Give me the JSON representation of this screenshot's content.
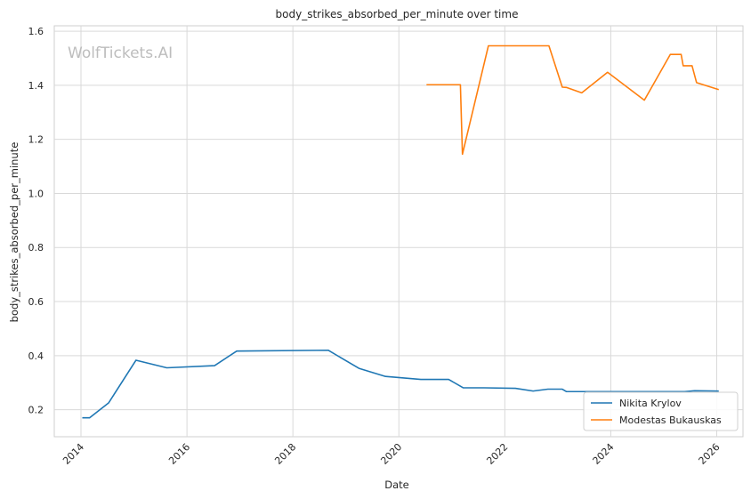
{
  "chart_data": {
    "type": "line",
    "title": "body_strikes_absorbed_per_minute over time",
    "xlabel": "Date",
    "ylabel": "body_strikes_absorbed_per_minute",
    "watermark": "WolfTickets.AI",
    "xlim": [
      "2013-07-01",
      "2026-07-01"
    ],
    "ylim": [
      0.1,
      1.62
    ],
    "x_ticks": [
      "2014",
      "2016",
      "2018",
      "2020",
      "2022",
      "2024",
      "2026"
    ],
    "y_ticks": [
      "0.2",
      "0.4",
      "0.6",
      "0.8",
      "1.0",
      "1.2",
      "1.4",
      "1.6"
    ],
    "grid": true,
    "legend_position": "lower-right",
    "series": [
      {
        "name": "Nikita Krylov",
        "color": "#1f77b4",
        "points": [
          [
            "2014-01-10",
            0.17
          ],
          [
            "2014-03-01",
            0.17
          ],
          [
            "2014-07-10",
            0.225
          ],
          [
            "2015-01-15",
            0.383
          ],
          [
            "2015-08-15",
            0.355
          ],
          [
            "2016-07-10",
            0.363
          ],
          [
            "2016-12-10",
            0.417
          ],
          [
            "2018-09-01",
            0.42
          ],
          [
            "2019-04-01",
            0.353
          ],
          [
            "2019-10-01",
            0.323
          ],
          [
            "2020-06-01",
            0.312
          ],
          [
            "2020-12-10",
            0.312
          ],
          [
            "2021-03-20",
            0.281
          ],
          [
            "2021-08-10",
            0.281
          ],
          [
            "2022-03-15",
            0.279
          ],
          [
            "2022-07-15",
            0.269
          ],
          [
            "2022-10-25",
            0.276
          ],
          [
            "2023-02-01",
            0.276
          ],
          [
            "2023-03-01",
            0.267
          ],
          [
            "2025-05-25",
            0.267
          ],
          [
            "2025-08-01",
            0.27
          ],
          [
            "2026-01-15",
            0.269
          ]
        ]
      },
      {
        "name": "Modestas Bukauskas",
        "color": "#ff7f0e",
        "points": [
          [
            "2020-07-10",
            1.402
          ],
          [
            "2021-03-01",
            1.402
          ],
          [
            "2021-03-15",
            1.145
          ],
          [
            "2021-09-10",
            1.546
          ],
          [
            "2022-11-01",
            1.546
          ],
          [
            "2023-02-01",
            1.393
          ],
          [
            "2023-03-01",
            1.392
          ],
          [
            "2023-06-15",
            1.372
          ],
          [
            "2023-12-10",
            1.448
          ],
          [
            "2024-08-20",
            1.345
          ],
          [
            "2025-02-15",
            1.514
          ],
          [
            "2025-05-01",
            1.514
          ],
          [
            "2025-05-15",
            1.472
          ],
          [
            "2025-07-15",
            1.472
          ],
          [
            "2025-08-15",
            1.41
          ],
          [
            "2026-01-15",
            1.384
          ]
        ]
      }
    ]
  }
}
